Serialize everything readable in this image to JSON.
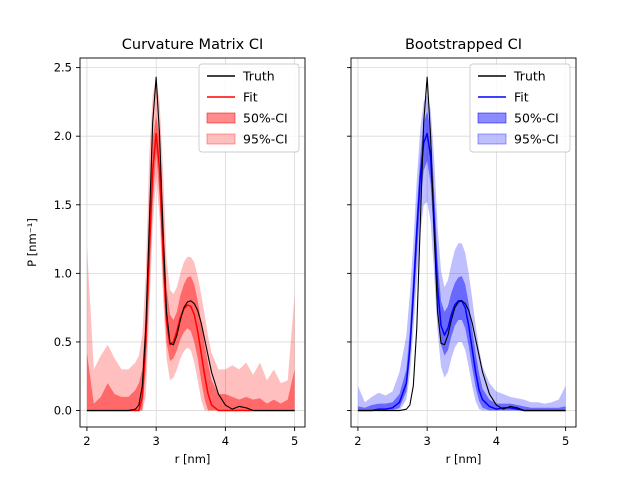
{
  "chart_data": [
    {
      "type": "line",
      "title": "Curvature Matrix CI",
      "xlabel": "r [nm]",
      "ylabel": "P [nm⁻¹]",
      "xlim": [
        1.9,
        5.15
      ],
      "ylim": [
        -0.12,
        2.57
      ],
      "xticks": [
        2,
        3,
        4,
        5
      ],
      "xtick_labels": [
        "2",
        "3",
        "4",
        "5"
      ],
      "yticks": [
        0.0,
        0.5,
        1.0,
        1.5,
        2.0,
        2.5
      ],
      "ytick_labels": [
        "0.0",
        "0.5",
        "1.0",
        "1.5",
        "2.0",
        "2.5"
      ],
      "grid": true,
      "legend_position": "top-right",
      "colors": {
        "fit": "#ff0000",
        "band50": "#ff0000",
        "band95": "#ff0000",
        "truth": "#000000"
      },
      "band_opacity": {
        "ci50": 0.45,
        "ci95": 0.25
      },
      "legend": [
        {
          "label": "Truth",
          "kind": "line",
          "color": "#000000"
        },
        {
          "label": "Fit",
          "kind": "line",
          "color": "#ff0000"
        },
        {
          "label": "50%-CI",
          "kind": "patch",
          "color": "#ff0000",
          "opacity": 0.45
        },
        {
          "label": "95%-CI",
          "kind": "patch",
          "color": "#ff0000",
          "opacity": 0.25
        }
      ],
      "x": [
        2.0,
        2.1,
        2.2,
        2.3,
        2.4,
        2.5,
        2.6,
        2.7,
        2.75,
        2.8,
        2.85,
        2.9,
        2.95,
        3.0,
        3.05,
        3.1,
        3.15,
        3.2,
        3.25,
        3.3,
        3.35,
        3.4,
        3.45,
        3.5,
        3.55,
        3.6,
        3.65,
        3.7,
        3.75,
        3.8,
        3.9,
        4.0,
        4.1,
        4.2,
        4.3,
        4.4,
        4.5,
        4.6,
        4.7,
        4.8,
        4.9,
        5.0
      ],
      "series": [
        {
          "name": "Truth",
          "values": [
            0,
            0,
            0,
            0,
            0,
            0,
            0,
            0.01,
            0.04,
            0.18,
            0.6,
            1.35,
            2.1,
            2.43,
            2.0,
            1.3,
            0.72,
            0.49,
            0.48,
            0.55,
            0.66,
            0.75,
            0.79,
            0.8,
            0.78,
            0.73,
            0.64,
            0.52,
            0.4,
            0.28,
            0.12,
            0.04,
            0.01,
            0.03,
            0.02,
            0.0,
            0,
            0,
            0,
            0,
            0,
            0
          ]
        },
        {
          "name": "Fit",
          "values": [
            0,
            0,
            0,
            0,
            0,
            0,
            0,
            0,
            0.0,
            0.1,
            0.5,
            1.15,
            1.75,
            2.02,
            1.75,
            1.15,
            0.65,
            0.48,
            0.5,
            0.58,
            0.68,
            0.74,
            0.77,
            0.76,
            0.7,
            0.58,
            0.42,
            0.26,
            0.12,
            0.04,
            0,
            0,
            0,
            0,
            0,
            0,
            0,
            0,
            0,
            0,
            0,
            0
          ]
        },
        {
          "name": "50%-CI lower",
          "values": [
            0,
            0,
            0,
            0,
            0,
            0,
            0,
            0,
            0,
            0.0,
            0.3,
            0.9,
            1.5,
            1.88,
            1.55,
            0.95,
            0.5,
            0.36,
            0.38,
            0.44,
            0.52,
            0.57,
            0.6,
            0.58,
            0.5,
            0.38,
            0.22,
            0.08,
            0,
            0,
            0,
            0,
            0,
            0,
            0,
            0,
            0,
            0,
            0,
            0,
            0,
            0
          ]
        },
        {
          "name": "50%-CI upper",
          "values": [
            0.42,
            0.05,
            0.1,
            0.2,
            0.12,
            0.1,
            0.1,
            0.15,
            0.2,
            0.3,
            0.72,
            1.42,
            1.98,
            2.15,
            1.98,
            1.45,
            0.9,
            0.7,
            0.66,
            0.72,
            0.84,
            0.92,
            0.97,
            0.98,
            0.92,
            0.8,
            0.65,
            0.48,
            0.34,
            0.22,
            0.12,
            0.12,
            0.1,
            0.08,
            0.1,
            0.08,
            0.09,
            0.05,
            0.08,
            0.05,
            0.08,
            0.3
          ]
        },
        {
          "name": "95%-CI lower",
          "values": [
            0,
            0,
            0,
            0,
            0,
            0,
            0,
            0,
            0,
            0,
            0.1,
            0.7,
            1.35,
            1.7,
            1.4,
            0.82,
            0.38,
            0.22,
            0.24,
            0.3,
            0.38,
            0.43,
            0.46,
            0.44,
            0.35,
            0.22,
            0.08,
            0,
            0,
            0,
            0,
            0,
            0,
            0,
            0,
            0,
            0,
            0,
            0,
            0,
            0,
            0
          ]
        },
        {
          "name": "95%-CI upper",
          "values": [
            1.2,
            0.3,
            0.4,
            0.48,
            0.38,
            0.3,
            0.3,
            0.35,
            0.4,
            0.55,
            1.0,
            1.85,
            2.3,
            2.42,
            2.25,
            1.75,
            1.1,
            0.88,
            0.85,
            0.9,
            1.0,
            1.08,
            1.12,
            1.12,
            1.08,
            0.98,
            0.85,
            0.7,
            0.54,
            0.42,
            0.3,
            0.3,
            0.33,
            0.3,
            0.35,
            0.26,
            0.35,
            0.22,
            0.3,
            0.2,
            0.22,
            0.85
          ]
        }
      ]
    },
    {
      "type": "line",
      "title": "Bootstrapped CI",
      "xlabel": "r [nm]",
      "ylabel": "",
      "xlim": [
        1.9,
        5.15
      ],
      "ylim": [
        -0.12,
        2.57
      ],
      "xticks": [
        2,
        3,
        4,
        5
      ],
      "xtick_labels": [
        "2",
        "3",
        "4",
        "5"
      ],
      "yticks": [
        0.0,
        0.5,
        1.0,
        1.5,
        2.0,
        2.5
      ],
      "ytick_labels": [],
      "grid": true,
      "legend_position": "top-right",
      "colors": {
        "fit": "#0000ff",
        "band50": "#0000ff",
        "band95": "#0000ff",
        "truth": "#000000"
      },
      "band_opacity": {
        "ci50": 0.45,
        "ci95": 0.25
      },
      "legend": [
        {
          "label": "Truth",
          "kind": "line",
          "color": "#000000"
        },
        {
          "label": "Fit",
          "kind": "line",
          "color": "#0000ff"
        },
        {
          "label": "50%-CI",
          "kind": "patch",
          "color": "#0000ff",
          "opacity": 0.45
        },
        {
          "label": "95%-CI",
          "kind": "patch",
          "color": "#0000ff",
          "opacity": 0.25
        }
      ],
      "x": [
        2.0,
        2.1,
        2.2,
        2.3,
        2.4,
        2.5,
        2.6,
        2.7,
        2.75,
        2.8,
        2.85,
        2.9,
        2.95,
        3.0,
        3.05,
        3.1,
        3.15,
        3.2,
        3.25,
        3.3,
        3.35,
        3.4,
        3.45,
        3.5,
        3.55,
        3.6,
        3.65,
        3.7,
        3.75,
        3.8,
        3.9,
        4.0,
        4.1,
        4.2,
        4.3,
        4.4,
        4.5,
        4.6,
        4.7,
        4.8,
        4.9,
        5.0
      ],
      "series": [
        {
          "name": "Truth",
          "values": [
            0,
            0,
            0,
            0,
            0,
            0,
            0,
            0.01,
            0.04,
            0.18,
            0.6,
            1.35,
            2.1,
            2.43,
            2.0,
            1.3,
            0.72,
            0.49,
            0.48,
            0.55,
            0.66,
            0.75,
            0.79,
            0.8,
            0.78,
            0.73,
            0.64,
            0.52,
            0.4,
            0.28,
            0.12,
            0.04,
            0.01,
            0.03,
            0.02,
            0.0,
            0,
            0,
            0,
            0,
            0,
            0
          ]
        },
        {
          "name": "Fit",
          "values": [
            0,
            0,
            0,
            0.01,
            0.01,
            0.02,
            0.06,
            0.2,
            0.45,
            0.85,
            1.3,
            1.7,
            1.95,
            2.02,
            1.85,
            1.4,
            0.9,
            0.62,
            0.55,
            0.6,
            0.7,
            0.77,
            0.8,
            0.8,
            0.75,
            0.62,
            0.45,
            0.28,
            0.15,
            0.08,
            0.03,
            0.01,
            0.02,
            0.02,
            0.01,
            0,
            0,
            0,
            0,
            0,
            0,
            0
          ]
        },
        {
          "name": "50%-CI lower",
          "values": [
            0,
            0,
            0,
            0,
            0,
            0,
            0.02,
            0.14,
            0.36,
            0.72,
            1.12,
            1.5,
            1.75,
            1.82,
            1.65,
            1.22,
            0.76,
            0.48,
            0.4,
            0.44,
            0.54,
            0.62,
            0.66,
            0.66,
            0.6,
            0.47,
            0.31,
            0.17,
            0.07,
            0.02,
            0,
            0,
            0,
            0,
            0,
            0,
            0,
            0,
            0,
            0,
            0,
            0
          ]
        },
        {
          "name": "50%-CI upper",
          "values": [
            0.03,
            0.02,
            0.04,
            0.05,
            0.05,
            0.06,
            0.12,
            0.3,
            0.58,
            1.0,
            1.45,
            1.85,
            2.1,
            2.18,
            2.05,
            1.62,
            1.1,
            0.8,
            0.72,
            0.76,
            0.86,
            0.93,
            0.97,
            0.98,
            0.92,
            0.78,
            0.6,
            0.42,
            0.27,
            0.16,
            0.08,
            0.05,
            0.05,
            0.05,
            0.04,
            0.03,
            0.02,
            0.02,
            0.02,
            0.02,
            0.02,
            0.03
          ]
        },
        {
          "name": "95%-CI lower",
          "values": [
            0,
            0,
            0,
            0,
            0,
            0,
            0,
            0.08,
            0.26,
            0.58,
            0.95,
            1.28,
            1.5,
            1.52,
            1.38,
            1.0,
            0.58,
            0.32,
            0.24,
            0.28,
            0.38,
            0.46,
            0.5,
            0.5,
            0.44,
            0.32,
            0.18,
            0.07,
            0.01,
            0,
            0,
            0,
            0,
            0,
            0,
            0,
            0,
            0,
            0,
            0,
            0,
            0
          ]
        },
        {
          "name": "95%-CI upper",
          "values": [
            0.18,
            0.06,
            0.1,
            0.13,
            0.11,
            0.14,
            0.28,
            0.55,
            0.85,
            1.22,
            1.68,
            2.05,
            2.25,
            2.3,
            2.2,
            1.85,
            1.35,
            1.02,
            0.9,
            0.95,
            1.07,
            1.17,
            1.22,
            1.22,
            1.15,
            1.0,
            0.82,
            0.62,
            0.45,
            0.32,
            0.2,
            0.14,
            0.12,
            0.1,
            0.09,
            0.08,
            0.06,
            0.06,
            0.05,
            0.06,
            0.08,
            0.18
          ]
        }
      ]
    }
  ]
}
